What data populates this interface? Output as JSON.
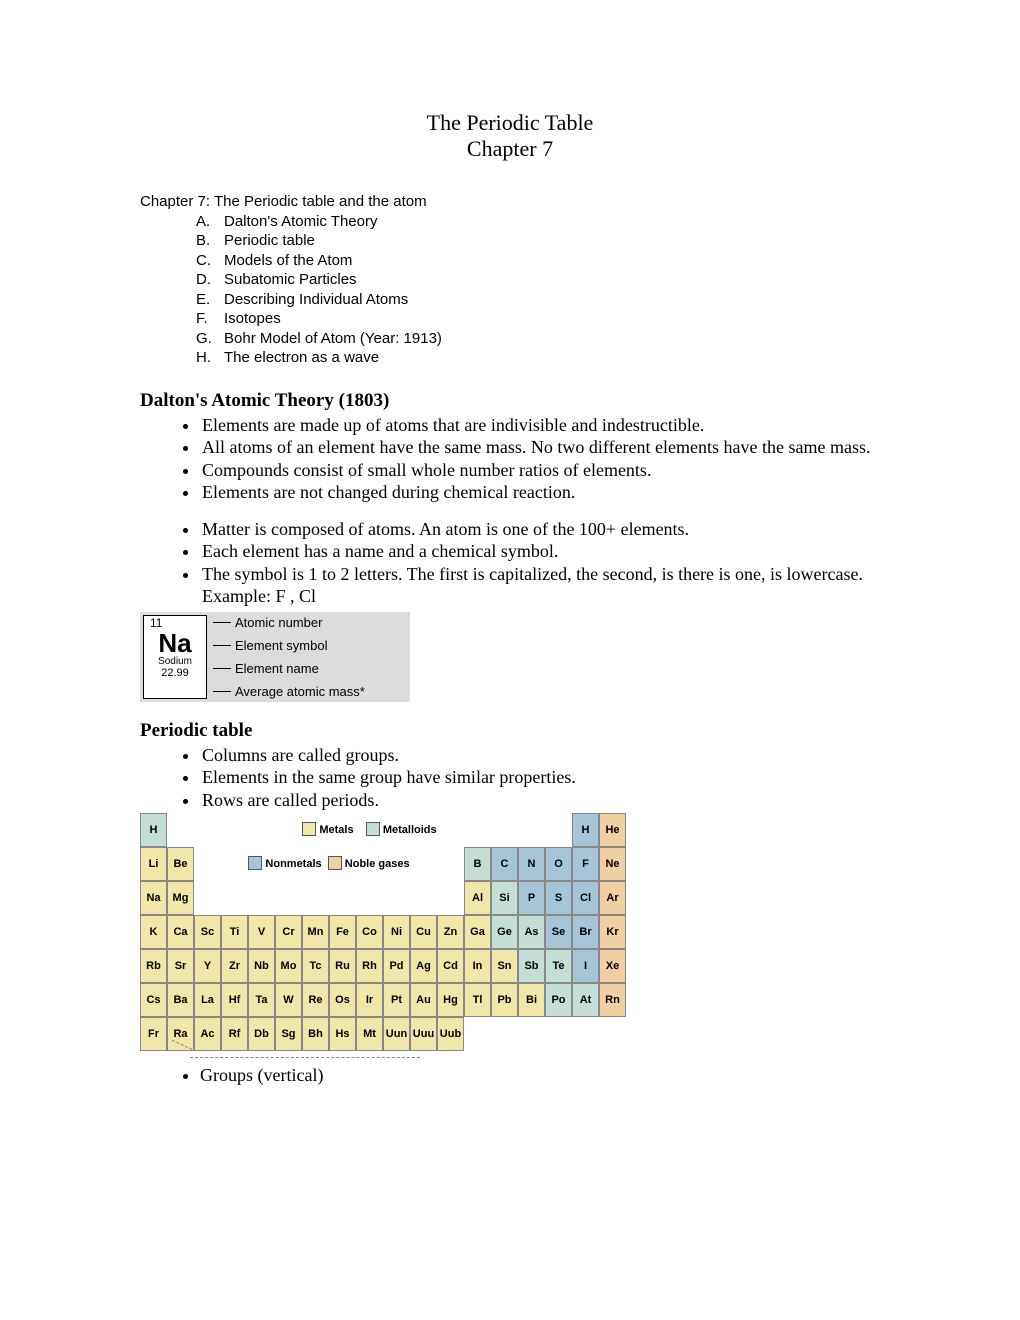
{
  "title_line1": "The Periodic Table",
  "title_line2": "Chapter 7",
  "outline_head": "Chapter 7:  The Periodic table and the atom",
  "outline": [
    {
      "m": "A.",
      "t": "Dalton's Atomic Theory"
    },
    {
      "m": "B.",
      "t": "Periodic table"
    },
    {
      "m": "C.",
      "t": "Models of the Atom"
    },
    {
      "m": "D.",
      "t": "Subatomic Particles"
    },
    {
      "m": "E.",
      "t": "Describing Individual Atoms"
    },
    {
      "m": "F.",
      "t": "Isotopes"
    },
    {
      "m": "G.",
      "t": "Bohr Model of Atom  (Year: 1913)"
    },
    {
      "m": "H.",
      "t": "The electron as a wave"
    }
  ],
  "dalton_head": "Dalton's Atomic Theory  (1803)",
  "dalton_bullets1": [
    "Elements are made up of atoms that are indivisible and indestructible.",
    "All atoms of an element have the same mass.  No two different elements have the same mass.",
    "Compounds consist of small whole number ratios of elements.",
    "Elements are not changed during chemical reaction."
  ],
  "dalton_bullets2": [
    "Matter is composed of atoms. An atom is one of the 100+ elements.",
    "Each element has a name and a chemical symbol.",
    "The symbol is 1 to 2 letters.  The first is capitalized, the second, is there is one, is lowercase.  Example:  F , Cl"
  ],
  "elem_card": {
    "anum": "11",
    "sym": "Na",
    "name": "Sodium",
    "mass": "22.99",
    "lbl_anum": "Atomic number",
    "lbl_sym": "Element symbol",
    "lbl_name": "Element name",
    "lbl_mass": "Average atomic mass*"
  },
  "pt_head": "Periodic table",
  "pt_bullets": [
    "Columns are called groups.",
    "Elements in the same group have similar properties.",
    "Rows are called periods."
  ],
  "legend": {
    "metals": "Metals",
    "nonmetals": "Nonmetals",
    "metalloids": "Metalloids",
    "noble": "Noble gases"
  },
  "colors": {
    "metal": "#f1e7a9",
    "nonmetal": "#a6c6d8",
    "metalloid": "#c5ded5",
    "noble": "#f0cfa1"
  },
  "ptable": {
    "r1": [
      {
        "s": "H",
        "c": "c-t"
      },
      {
        "s": "H",
        "c": "c-b"
      },
      {
        "s": "He",
        "c": "c-o"
      }
    ],
    "r2": [
      {
        "s": "Li",
        "c": "c-y"
      },
      {
        "s": "Be",
        "c": "c-y"
      },
      {
        "s": "B",
        "c": "c-t"
      },
      {
        "s": "C",
        "c": "c-b"
      },
      {
        "s": "N",
        "c": "c-b"
      },
      {
        "s": "O",
        "c": "c-b"
      },
      {
        "s": "F",
        "c": "c-b"
      },
      {
        "s": "Ne",
        "c": "c-o"
      }
    ],
    "r3": [
      {
        "s": "Na",
        "c": "c-y"
      },
      {
        "s": "Mg",
        "c": "c-y"
      },
      {
        "s": "Al",
        "c": "c-y"
      },
      {
        "s": "Si",
        "c": "c-t"
      },
      {
        "s": "P",
        "c": "c-b"
      },
      {
        "s": "S",
        "c": "c-b"
      },
      {
        "s": "Cl",
        "c": "c-b"
      },
      {
        "s": "Ar",
        "c": "c-o"
      }
    ],
    "r4": [
      {
        "s": "K",
        "c": "c-y"
      },
      {
        "s": "Ca",
        "c": "c-y"
      },
      {
        "s": "Sc",
        "c": "c-y"
      },
      {
        "s": "Ti",
        "c": "c-y"
      },
      {
        "s": "V",
        "c": "c-y"
      },
      {
        "s": "Cr",
        "c": "c-y"
      },
      {
        "s": "Mn",
        "c": "c-y"
      },
      {
        "s": "Fe",
        "c": "c-y"
      },
      {
        "s": "Co",
        "c": "c-y"
      },
      {
        "s": "Ni",
        "c": "c-y"
      },
      {
        "s": "Cu",
        "c": "c-y"
      },
      {
        "s": "Zn",
        "c": "c-y"
      },
      {
        "s": "Ga",
        "c": "c-y"
      },
      {
        "s": "Ge",
        "c": "c-t"
      },
      {
        "s": "As",
        "c": "c-t"
      },
      {
        "s": "Se",
        "c": "c-b"
      },
      {
        "s": "Br",
        "c": "c-b"
      },
      {
        "s": "Kr",
        "c": "c-o"
      }
    ],
    "r5": [
      {
        "s": "Rb",
        "c": "c-y"
      },
      {
        "s": "Sr",
        "c": "c-y"
      },
      {
        "s": "Y",
        "c": "c-y"
      },
      {
        "s": "Zr",
        "c": "c-y"
      },
      {
        "s": "Nb",
        "c": "c-y"
      },
      {
        "s": "Mo",
        "c": "c-y"
      },
      {
        "s": "Tc",
        "c": "c-y"
      },
      {
        "s": "Ru",
        "c": "c-y"
      },
      {
        "s": "Rh",
        "c": "c-y"
      },
      {
        "s": "Pd",
        "c": "c-y"
      },
      {
        "s": "Ag",
        "c": "c-y"
      },
      {
        "s": "Cd",
        "c": "c-y"
      },
      {
        "s": "In",
        "c": "c-y"
      },
      {
        "s": "Sn",
        "c": "c-y"
      },
      {
        "s": "Sb",
        "c": "c-t"
      },
      {
        "s": "Te",
        "c": "c-t"
      },
      {
        "s": "I",
        "c": "c-b"
      },
      {
        "s": "Xe",
        "c": "c-o"
      }
    ],
    "r6": [
      {
        "s": "Cs",
        "c": "c-y"
      },
      {
        "s": "Ba",
        "c": "c-y"
      },
      {
        "s": "La",
        "c": "c-y"
      },
      {
        "s": "Hf",
        "c": "c-y"
      },
      {
        "s": "Ta",
        "c": "c-y"
      },
      {
        "s": "W",
        "c": "c-y"
      },
      {
        "s": "Re",
        "c": "c-y"
      },
      {
        "s": "Os",
        "c": "c-y"
      },
      {
        "s": "Ir",
        "c": "c-y"
      },
      {
        "s": "Pt",
        "c": "c-y"
      },
      {
        "s": "Au",
        "c": "c-y"
      },
      {
        "s": "Hg",
        "c": "c-y"
      },
      {
        "s": "Tl",
        "c": "c-y"
      },
      {
        "s": "Pb",
        "c": "c-y"
      },
      {
        "s": "Bi",
        "c": "c-y"
      },
      {
        "s": "Po",
        "c": "c-t"
      },
      {
        "s": "At",
        "c": "c-t"
      },
      {
        "s": "Rn",
        "c": "c-o"
      }
    ],
    "r7": [
      {
        "s": "Fr",
        "c": "c-y"
      },
      {
        "s": "Ra",
        "c": "c-y"
      },
      {
        "s": "Ac",
        "c": "c-y"
      },
      {
        "s": "Rf",
        "c": "c-y"
      },
      {
        "s": "Db",
        "c": "c-y"
      },
      {
        "s": "Sg",
        "c": "c-y"
      },
      {
        "s": "Bh",
        "c": "c-y"
      },
      {
        "s": "Hs",
        "c": "c-y"
      },
      {
        "s": "Mt",
        "c": "c-y"
      },
      {
        "s": "Uun",
        "c": "c-y"
      },
      {
        "s": "Uuu",
        "c": "c-y"
      },
      {
        "s": "Uub",
        "c": "c-y"
      }
    ]
  },
  "final_bullet": "Groups (vertical)"
}
